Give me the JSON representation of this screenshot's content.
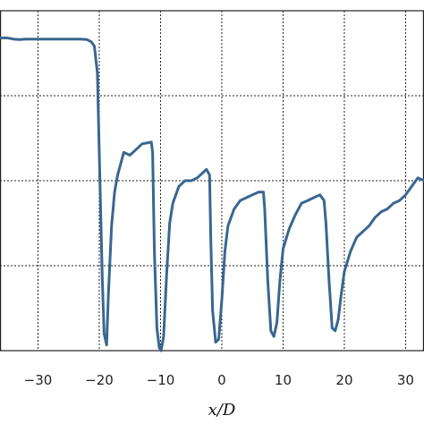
{
  "chart_data": {
    "type": "line",
    "xlabel": "x/D",
    "xlim": [
      -36.2,
      33
    ],
    "ylim": [
      0,
      1.2
    ],
    "x_ticks": [
      -30,
      -20,
      -10,
      0,
      10,
      20,
      30
    ],
    "x_tick_labels": [
      "−30",
      "−20",
      "−10",
      "0",
      "10",
      "20",
      "30"
    ],
    "y_grid": [
      0.3,
      0.6,
      0.9,
      1.2
    ],
    "grid": true,
    "series": [
      {
        "color": "#3a6690",
        "x": [
          -36.2,
          -35.0,
          -34.0,
          -33.0,
          -32.0,
          -31.0,
          -30.0,
          -27.0,
          -25.0,
          -23.0,
          -22.0,
          -21.3,
          -20.8,
          -20.3,
          -19.9,
          -19.5,
          -19.2,
          -18.8,
          -18.5,
          -18.0,
          -17.5,
          -17.0,
          -16.0,
          -15.0,
          -14.0,
          -13.0,
          -11.5,
          -11.3,
          -11.0,
          -10.6,
          -10.2,
          -9.9,
          -9.5,
          -9.0,
          -8.5,
          -8.0,
          -7.0,
          -6.0,
          -5.0,
          -4.0,
          -3.0,
          -2.5,
          -2.0,
          -1.8,
          -1.5,
          -1.0,
          -0.5,
          0.0,
          0.5,
          1.0,
          2.0,
          3.0,
          4.0,
          5.0,
          6.0,
          6.8,
          7.0,
          7.5,
          8.0,
          8.5,
          9.0,
          9.5,
          10.0,
          11.0,
          12.0,
          13.0,
          14.0,
          15.0,
          16.0,
          16.7,
          17.0,
          17.5,
          18.0,
          18.5,
          19.0,
          19.5,
          20.0,
          21.0,
          22.0,
          23.0,
          24.0,
          25.0,
          26.0,
          27.0,
          28.0,
          29.0,
          30.0,
          31.0,
          32.0,
          33.0
        ],
        "y": [
          1.104,
          1.104,
          1.1,
          1.098,
          1.1,
          1.1,
          1.1,
          1.1,
          1.1,
          1.1,
          1.098,
          1.09,
          1.075,
          0.98,
          0.6,
          0.25,
          0.06,
          0.02,
          0.2,
          0.44,
          0.56,
          0.62,
          0.7,
          0.69,
          0.71,
          0.73,
          0.736,
          0.7,
          0.35,
          0.08,
          0.01,
          0.0,
          0.05,
          0.27,
          0.45,
          0.52,
          0.58,
          0.6,
          0.6,
          0.61,
          0.63,
          0.64,
          0.62,
          0.4,
          0.14,
          0.03,
          0.04,
          0.18,
          0.35,
          0.44,
          0.5,
          0.53,
          0.54,
          0.55,
          0.56,
          0.56,
          0.5,
          0.25,
          0.07,
          0.05,
          0.1,
          0.25,
          0.36,
          0.43,
          0.48,
          0.52,
          0.53,
          0.54,
          0.55,
          0.53,
          0.45,
          0.25,
          0.08,
          0.07,
          0.11,
          0.2,
          0.28,
          0.35,
          0.4,
          0.42,
          0.44,
          0.47,
          0.49,
          0.5,
          0.52,
          0.53,
          0.55,
          0.58,
          0.61,
          0.6
        ]
      }
    ]
  }
}
